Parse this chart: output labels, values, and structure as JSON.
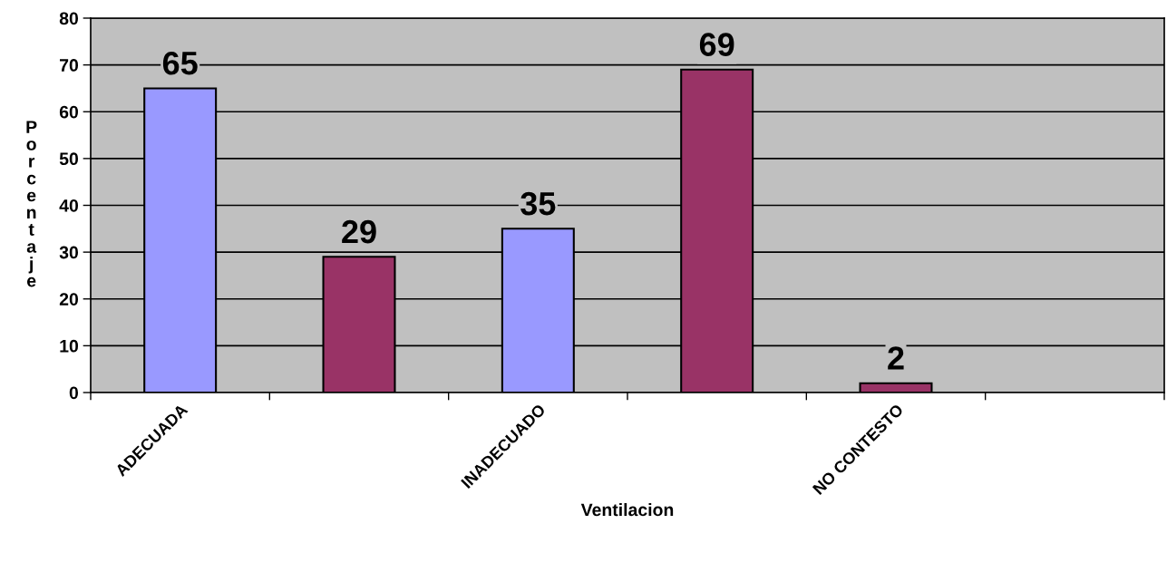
{
  "chart_data": {
    "type": "bar",
    "xlabel": "Ventilacion",
    "ylabel": "Porcentaje",
    "categories": [
      "ADECUADA",
      null,
      "INADECUADO",
      null,
      "NO CONTESTO",
      null
    ],
    "values": [
      65,
      29,
      35,
      69,
      2,
      null
    ],
    "colors": [
      "#9999ff",
      "#993366",
      "#9999ff",
      "#993366",
      "#993366",
      "#993366"
    ],
    "ylim": [
      0,
      80
    ],
    "yticks": [
      0,
      10,
      20,
      30,
      40,
      50,
      60,
      70,
      80
    ],
    "grid": "y",
    "data_labels": true
  }
}
